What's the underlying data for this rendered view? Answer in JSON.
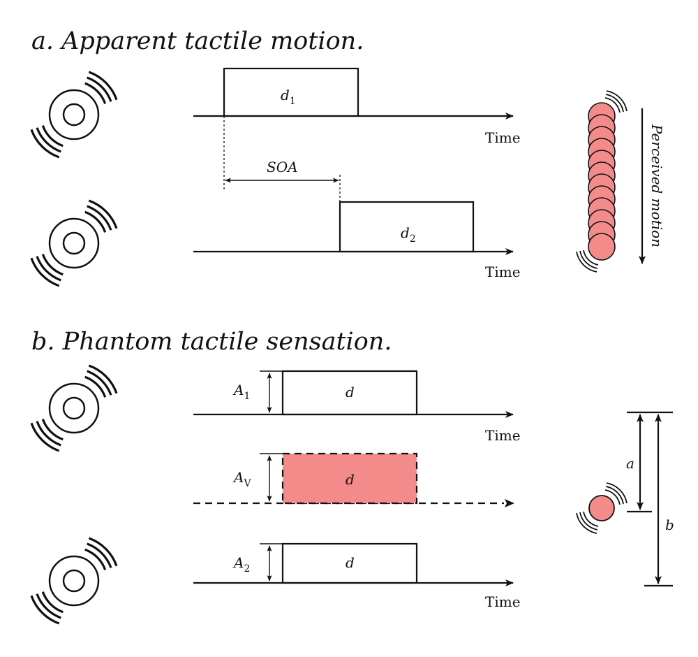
{
  "titles": {
    "a": "a. Apparent tactile motion.",
    "b": "b. Phantom tactile sensation."
  },
  "axis_label": "Time",
  "pulses": {
    "d1": {
      "main": "d",
      "sub": "1"
    },
    "d2": {
      "main": "d",
      "sub": "2"
    },
    "d": "d"
  },
  "soa_label": "SOA",
  "perceived_motion_label": "Perceived motion",
  "amplitudes": {
    "a1": {
      "main": "A",
      "sub": "1"
    },
    "av": {
      "main": "A",
      "sub": "V"
    },
    "a2": {
      "main": "A",
      "sub": "2"
    }
  },
  "distances": {
    "a": "a",
    "b": "b"
  },
  "colors": {
    "virtual_fill": "#f48b8b",
    "ink": "#111111"
  },
  "icons": [
    "vibrotactile-actuator-icon"
  ]
}
